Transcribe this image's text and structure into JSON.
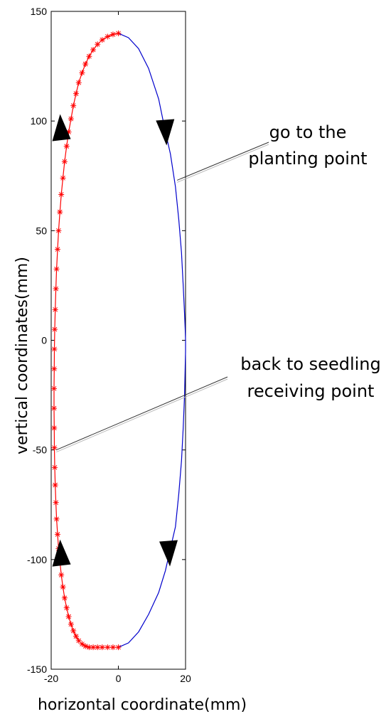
{
  "chart_data": {
    "type": "line",
    "title": "",
    "xlabel": "horizontal coordinate(mm)",
    "ylabel": "vertical coordinates(mm)",
    "xlim": [
      -20,
      20
    ],
    "ylim": [
      -150,
      150
    ],
    "xticks": [
      -20,
      0,
      20
    ],
    "yticks": [
      150,
      100,
      50,
      0,
      -50,
      -100,
      -150
    ],
    "grid": false,
    "legend": "none",
    "series": [
      {
        "color": "#0000cc",
        "marker": "none",
        "x": [
          0,
          3,
          6,
          9,
          12,
          14,
          15.5,
          17,
          18,
          18.8,
          19.3,
          19.7,
          19.9,
          20,
          20,
          19.9,
          19.7,
          19.3,
          18.8,
          18,
          17,
          15.5,
          14,
          12,
          9,
          6,
          3,
          0
        ],
        "y": [
          140,
          138,
          133,
          124,
          110,
          95,
          85,
          70,
          55,
          40,
          25,
          12,
          5,
          0,
          -5,
          -12,
          -25,
          -40,
          -55,
          -70,
          -85,
          -95,
          -105,
          -115,
          -125,
          -133,
          -138,
          -140
        ]
      },
      {
        "color": "#ff0000",
        "marker": "asterisk",
        "x": [
          0,
          -1.6,
          -3.2,
          -4.8,
          -6.2,
          -7.5,
          -8.7,
          -9.8,
          -10.8,
          -11.8,
          -12.6,
          -13.4,
          -14.1,
          -14.8,
          -15.4,
          -16,
          -16.5,
          -17,
          -17.4,
          -17.8,
          -18.1,
          -18.4,
          -18.6,
          -18.8,
          -18.95,
          -19.05,
          -19.1,
          -19.15,
          -19.15,
          -19.1,
          -19.05,
          -18.95,
          -18.8,
          -18.6,
          -18.4,
          -18.1,
          -17.8,
          -17.4,
          -17,
          -16.5,
          -16,
          -15.4,
          -14.8,
          -14.1,
          -13.4,
          -12.6,
          -11.8,
          -10.8,
          -9.8,
          -8.7,
          -7.5,
          -6.2,
          -4.8,
          -3.2,
          -1.6,
          0
        ],
        "y": [
          140,
          139.5,
          138.5,
          137,
          135,
          132.5,
          129.5,
          126,
          122,
          117.5,
          112.5,
          107,
          101,
          95,
          88.5,
          81.5,
          74,
          66.5,
          58.5,
          50,
          41.5,
          32.5,
          23.5,
          14,
          5,
          -4,
          -13,
          -22,
          -31,
          -40,
          -49,
          -58,
          -66,
          -74,
          -81.5,
          -88.5,
          -95,
          -101,
          -107,
          -112.5,
          -117.5,
          -122,
          -126,
          -129.5,
          -132.5,
          -135,
          -137,
          -138.5,
          -139.5,
          -140,
          -140,
          -140,
          -140,
          -140,
          -140,
          -140
        ]
      }
    ],
    "direction_arrows": [
      {
        "x": -16.5,
        "y": 96,
        "direction": "up"
      },
      {
        "x": 13.5,
        "y": 96,
        "direction": "down"
      },
      {
        "x": -16.5,
        "y": -98,
        "direction": "up"
      },
      {
        "x": 14.5,
        "y": -96,
        "direction": "down"
      }
    ],
    "annotations": [
      {
        "lines": [
          "go to the",
          "planting point"
        ],
        "pointer_to": [
          17.5,
          73
        ]
      },
      {
        "lines": [
          "back to seedling",
          "receiving point"
        ],
        "pointer_to": [
          -18.5,
          -50
        ]
      }
    ]
  }
}
